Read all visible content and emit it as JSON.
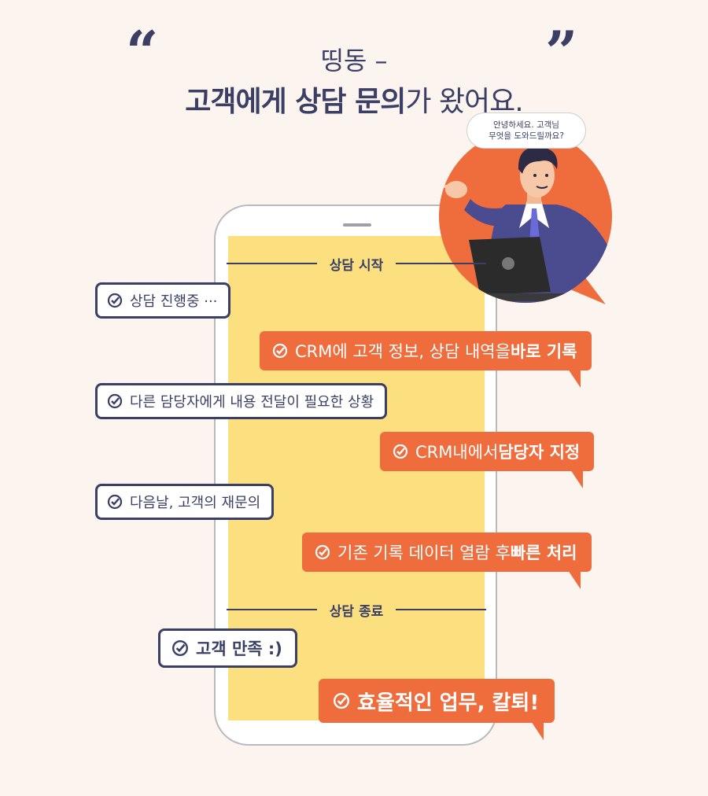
{
  "header": {
    "open_quote": "“",
    "close_quote": "”",
    "line1": "띵동 –",
    "line2_bold": "고객에게 상담 문의",
    "line2_light": "가 왔어요."
  },
  "character": {
    "speech_line1": "안녕하세요. 고객님",
    "speech_line2": "무엇을 도와드릴까요?"
  },
  "dividers": {
    "start": "상담 시작",
    "end": "상담 종료"
  },
  "chat": [
    {
      "side": "left",
      "text": "상담 진행중 ···"
    },
    {
      "side": "right",
      "text": "CRM에 고객 정보, 상담 내역을 ",
      "bold": "바로 기록"
    },
    {
      "side": "left",
      "text": "다른 담당자에게 내용 전달이 필요한 상황"
    },
    {
      "side": "right",
      "text": "CRM내에서 ",
      "bold": "담당자 지정"
    },
    {
      "side": "left",
      "text": "다음날, 고객의 재문의"
    },
    {
      "side": "right",
      "text": "기존 기록 데이터 열람 후 ",
      "bold": "빠른 처리"
    },
    {
      "side": "left",
      "text": "고객 만족 :)"
    },
    {
      "side": "right",
      "text": "",
      "bold": "효율적인 업무, 칼퇴!"
    }
  ],
  "colors": {
    "navy": "#3b3f66",
    "orange": "#ef6d3d",
    "screen_yellow": "#fce080",
    "background": "#fcf4ee"
  }
}
